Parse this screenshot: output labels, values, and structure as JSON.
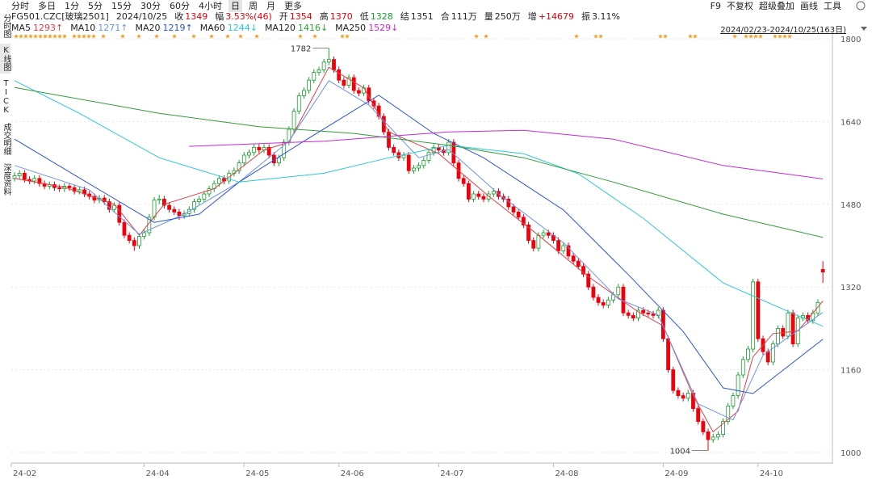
{
  "toolbar": {
    "tabs": [
      "分时",
      "多日",
      "1分",
      "5分",
      "15分",
      "30分",
      "60分",
      "4小时",
      "日",
      "周",
      "月",
      "更多"
    ],
    "active": "日",
    "tools": [
      "F9",
      "不复权",
      "超级叠加",
      "画线",
      "工具"
    ]
  },
  "sidebar": [
    "分时图",
    "K线图",
    "TICK",
    "成交明细",
    "深度资料"
  ],
  "quote": {
    "code": "FG501.CZC[玻璃2501]",
    "date": "2024/10/25",
    "fields": [
      {
        "label": "收",
        "value": "1349",
        "color": "#e8000b"
      },
      {
        "label": "幅",
        "value": "3.53%(46)",
        "color": "#e8000b"
      },
      {
        "label": "开",
        "value": "1354",
        "color": "#e8000b"
      },
      {
        "label": "高",
        "value": "1370",
        "color": "#e8000b"
      },
      {
        "label": "低",
        "value": "1328",
        "color": "#1a9e2d"
      },
      {
        "label": "结",
        "value": "1351",
        "color": "#222"
      },
      {
        "label": "合",
        "value": "111万",
        "color": "#222"
      },
      {
        "label": "量",
        "value": "250万",
        "color": "#222"
      },
      {
        "label": "增",
        "value": "+14679",
        "color": "#e8000b"
      },
      {
        "label": "振",
        "value": "3.11%",
        "color": "#222"
      }
    ]
  },
  "range": "2024/02/23-2024/10/25(163日)",
  "chart_data": {
    "type": "candlestick",
    "rise_color": "#1a9e2d",
    "fall_color": "#f0000a",
    "ylim": [
      1000,
      1800
    ],
    "yticks": [
      1000,
      1160,
      1320,
      1480,
      1640,
      1800
    ],
    "xticks": [
      {
        "value": 0,
        "label": "24-02"
      },
      {
        "value": 26,
        "label": "24-04"
      },
      {
        "value": 46,
        "label": "24-05"
      },
      {
        "value": 65,
        "label": "24-06"
      },
      {
        "value": 85,
        "label": "24-07"
      },
      {
        "value": 108,
        "label": "24-08"
      },
      {
        "value": 130,
        "label": "24-09"
      },
      {
        "value": 149,
        "label": "24-10"
      }
    ],
    "annotations": [
      {
        "text": "1782",
        "kind": "high"
      },
      {
        "text": "1004",
        "kind": "low"
      }
    ],
    "ohlc": [
      [
        1530,
        1542,
        1524,
        1535
      ],
      [
        1535,
        1546,
        1529,
        1540
      ],
      [
        1540,
        1546,
        1522,
        1528
      ],
      [
        1528,
        1534,
        1519,
        1525
      ],
      [
        1525,
        1536,
        1519,
        1530
      ],
      [
        1530,
        1536,
        1514,
        1520
      ],
      [
        1520,
        1526,
        1509,
        1515
      ],
      [
        1515,
        1524,
        1509,
        1518
      ],
      [
        1518,
        1524,
        1506,
        1512
      ],
      [
        1512,
        1518,
        1504,
        1510
      ],
      [
        1510,
        1521,
        1504,
        1515
      ],
      [
        1515,
        1521,
        1506,
        1512
      ],
      [
        1512,
        1518,
        1499,
        1505
      ],
      [
        1505,
        1514,
        1499,
        1508
      ],
      [
        1508,
        1514,
        1494,
        1500
      ],
      [
        1500,
        1506,
        1489,
        1495
      ],
      [
        1495,
        1501,
        1482,
        1488
      ],
      [
        1488,
        1498,
        1482,
        1492
      ],
      [
        1492,
        1498,
        1479,
        1485
      ],
      [
        1485,
        1491,
        1464,
        1470
      ],
      [
        1470,
        1484,
        1464,
        1478
      ],
      [
        1478,
        1484,
        1439,
        1445
      ],
      [
        1445,
        1451,
        1414,
        1420
      ],
      [
        1420,
        1426,
        1404,
        1410
      ],
      [
        1410,
        1416,
        1390,
        1400
      ],
      [
        1400,
        1424,
        1394,
        1418
      ],
      [
        1418,
        1431,
        1412,
        1425
      ],
      [
        1425,
        1461,
        1419,
        1455
      ],
      [
        1455,
        1494,
        1449,
        1488
      ],
      [
        1488,
        1498,
        1480,
        1490
      ],
      [
        1490,
        1496,
        1472,
        1478
      ],
      [
        1478,
        1484,
        1464,
        1470
      ],
      [
        1470,
        1476,
        1459,
        1465
      ],
      [
        1465,
        1471,
        1450,
        1458
      ],
      [
        1458,
        1468,
        1452,
        1462
      ],
      [
        1462,
        1476,
        1456,
        1470
      ],
      [
        1470,
        1491,
        1464,
        1485
      ],
      [
        1485,
        1496,
        1479,
        1490
      ],
      [
        1490,
        1506,
        1484,
        1500
      ],
      [
        1500,
        1516,
        1494,
        1510
      ],
      [
        1510,
        1526,
        1504,
        1520
      ],
      [
        1520,
        1536,
        1514,
        1530
      ],
      [
        1530,
        1536,
        1519,
        1525
      ],
      [
        1525,
        1546,
        1519,
        1540
      ],
      [
        1540,
        1551,
        1534,
        1545
      ],
      [
        1545,
        1566,
        1539,
        1560
      ],
      [
        1560,
        1581,
        1554,
        1575
      ],
      [
        1575,
        1586,
        1569,
        1580
      ],
      [
        1580,
        1596,
        1574,
        1590
      ],
      [
        1590,
        1596,
        1579,
        1585
      ],
      [
        1585,
        1596,
        1579,
        1590
      ],
      [
        1590,
        1596,
        1569,
        1575
      ],
      [
        1575,
        1581,
        1554,
        1560
      ],
      [
        1560,
        1576,
        1554,
        1570
      ],
      [
        1570,
        1606,
        1564,
        1600
      ],
      [
        1600,
        1631,
        1594,
        1625
      ],
      [
        1625,
        1666,
        1619,
        1660
      ],
      [
        1660,
        1696,
        1654,
        1690
      ],
      [
        1690,
        1706,
        1684,
        1700
      ],
      [
        1700,
        1726,
        1694,
        1720
      ],
      [
        1720,
        1741,
        1714,
        1735
      ],
      [
        1735,
        1746,
        1729,
        1740
      ],
      [
        1740,
        1761,
        1734,
        1755
      ],
      [
        1755,
        1782,
        1749,
        1760
      ],
      [
        1760,
        1766,
        1734,
        1740
      ],
      [
        1740,
        1746,
        1714,
        1720
      ],
      [
        1720,
        1726,
        1704,
        1710
      ],
      [
        1710,
        1731,
        1704,
        1725
      ],
      [
        1725,
        1731,
        1694,
        1700
      ],
      [
        1700,
        1706,
        1689,
        1695
      ],
      [
        1695,
        1711,
        1689,
        1705
      ],
      [
        1705,
        1711,
        1674,
        1680
      ],
      [
        1680,
        1686,
        1664,
        1670
      ],
      [
        1670,
        1676,
        1644,
        1650
      ],
      [
        1650,
        1656,
        1614,
        1620
      ],
      [
        1620,
        1626,
        1584,
        1590
      ],
      [
        1590,
        1596,
        1574,
        1580
      ],
      [
        1580,
        1586,
        1564,
        1570
      ],
      [
        1570,
        1581,
        1564,
        1575
      ],
      [
        1575,
        1581,
        1539,
        1545
      ],
      [
        1545,
        1556,
        1539,
        1550
      ],
      [
        1550,
        1561,
        1544,
        1555
      ],
      [
        1555,
        1571,
        1549,
        1565
      ],
      [
        1565,
        1586,
        1559,
        1580
      ],
      [
        1580,
        1596,
        1574,
        1590
      ],
      [
        1590,
        1596,
        1579,
        1585
      ],
      [
        1585,
        1591,
        1574,
        1580
      ],
      [
        1580,
        1606,
        1574,
        1600
      ],
      [
        1600,
        1606,
        1554,
        1560
      ],
      [
        1560,
        1566,
        1524,
        1530
      ],
      [
        1530,
        1536,
        1514,
        1520
      ],
      [
        1520,
        1526,
        1484,
        1490
      ],
      [
        1490,
        1506,
        1484,
        1500
      ],
      [
        1500,
        1506,
        1489,
        1495
      ],
      [
        1495,
        1501,
        1484,
        1490
      ],
      [
        1490,
        1506,
        1484,
        1500
      ],
      [
        1500,
        1511,
        1494,
        1505
      ],
      [
        1505,
        1511,
        1489,
        1495
      ],
      [
        1495,
        1501,
        1484,
        1490
      ],
      [
        1490,
        1496,
        1469,
        1475
      ],
      [
        1475,
        1481,
        1459,
        1465
      ],
      [
        1465,
        1471,
        1449,
        1455
      ],
      [
        1455,
        1461,
        1434,
        1440
      ],
      [
        1440,
        1446,
        1404,
        1410
      ],
      [
        1410,
        1416,
        1389,
        1395
      ],
      [
        1395,
        1426,
        1389,
        1420
      ],
      [
        1420,
        1431,
        1414,
        1425
      ],
      [
        1425,
        1431,
        1414,
        1420
      ],
      [
        1420,
        1426,
        1404,
        1410
      ],
      [
        1410,
        1416,
        1384,
        1390
      ],
      [
        1390,
        1406,
        1384,
        1400
      ],
      [
        1400,
        1406,
        1374,
        1380
      ],
      [
        1380,
        1386,
        1364,
        1370
      ],
      [
        1370,
        1376,
        1354,
        1360
      ],
      [
        1360,
        1366,
        1339,
        1345
      ],
      [
        1345,
        1351,
        1314,
        1320
      ],
      [
        1320,
        1326,
        1294,
        1300
      ],
      [
        1300,
        1306,
        1284,
        1290
      ],
      [
        1290,
        1296,
        1279,
        1285
      ],
      [
        1285,
        1301,
        1279,
        1295
      ],
      [
        1295,
        1311,
        1289,
        1305
      ],
      [
        1305,
        1326,
        1299,
        1320
      ],
      [
        1320,
        1326,
        1264,
        1270
      ],
      [
        1270,
        1276,
        1259,
        1265
      ],
      [
        1265,
        1271,
        1254,
        1260
      ],
      [
        1260,
        1281,
        1254,
        1275
      ],
      [
        1275,
        1281,
        1264,
        1270
      ],
      [
        1270,
        1276,
        1262,
        1268
      ],
      [
        1268,
        1274,
        1259,
        1265
      ],
      [
        1265,
        1281,
        1259,
        1275
      ],
      [
        1275,
        1281,
        1214,
        1220
      ],
      [
        1220,
        1226,
        1154,
        1160
      ],
      [
        1160,
        1166,
        1114,
        1120
      ],
      [
        1120,
        1126,
        1104,
        1110
      ],
      [
        1110,
        1116,
        1099,
        1105
      ],
      [
        1105,
        1121,
        1099,
        1115
      ],
      [
        1115,
        1121,
        1079,
        1085
      ],
      [
        1085,
        1091,
        1054,
        1060
      ],
      [
        1060,
        1066,
        1034,
        1040
      ],
      [
        1040,
        1046,
        1004,
        1025
      ],
      [
        1025,
        1036,
        1019,
        1030
      ],
      [
        1030,
        1041,
        1024,
        1035
      ],
      [
        1035,
        1066,
        1029,
        1060
      ],
      [
        1060,
        1096,
        1054,
        1090
      ],
      [
        1090,
        1116,
        1084,
        1110
      ],
      [
        1110,
        1156,
        1104,
        1150
      ],
      [
        1150,
        1186,
        1144,
        1180
      ],
      [
        1180,
        1206,
        1174,
        1200
      ],
      [
        1200,
        1336,
        1194,
        1330
      ],
      [
        1330,
        1336,
        1214,
        1220
      ],
      [
        1220,
        1226,
        1189,
        1195
      ],
      [
        1195,
        1201,
        1169,
        1175
      ],
      [
        1175,
        1216,
        1169,
        1210
      ],
      [
        1210,
        1246,
        1204,
        1240
      ],
      [
        1240,
        1246,
        1219,
        1225
      ],
      [
        1225,
        1276,
        1219,
        1270
      ],
      [
        1270,
        1276,
        1204,
        1210
      ],
      [
        1210,
        1266,
        1204,
        1260
      ],
      [
        1260,
        1271,
        1254,
        1265
      ],
      [
        1265,
        1271,
        1249,
        1255
      ],
      [
        1255,
        1276,
        1249,
        1270
      ],
      [
        1270,
        1296,
        1264,
        1290
      ],
      [
        1354,
        1370,
        1328,
        1349
      ]
    ],
    "series": [
      {
        "name": "MA5",
        "color": "#e0404a",
        "last": 1293,
        "last_label": "1293↑",
        "x": [
          0,
          10,
          20,
          25,
          30,
          40,
          50,
          55,
          63,
          70,
          75,
          85,
          95,
          105,
          115,
          125,
          130,
          136,
          140,
          145,
          148,
          152,
          157,
          162
        ],
        "values": [
          1530,
          1513,
          1480,
          1420,
          1480,
          1510,
          1585,
          1600,
          1745,
          1705,
          1620,
          1578,
          1496,
          1420,
          1340,
          1272,
          1245,
          1110,
          1040,
          1080,
          1185,
          1230,
          1235,
          1293
        ]
      },
      {
        "name": "MA10",
        "color": "#6b93ec",
        "last": 1271,
        "last_label": "1271↑",
        "x": [
          0,
          15,
          25,
          34,
          45,
          55,
          63,
          71,
          81,
          87,
          97,
          110,
          121,
          129,
          137,
          144,
          150,
          162
        ],
        "values": [
          1555,
          1508,
          1422,
          1461,
          1523,
          1602,
          1719,
          1672,
          1570,
          1586,
          1500,
          1406,
          1297,
          1266,
          1094,
          1063,
          1188,
          1271
        ]
      },
      {
        "name": "MA20",
        "color": "#2d55da",
        "last": 1219,
        "last_label": "1219↑",
        "x": [
          0,
          13,
          28,
          37,
          45,
          58,
          73,
          84,
          94,
          110,
          123,
          134,
          142,
          148,
          162
        ],
        "values": [
          1606,
          1531,
          1445,
          1461,
          1523,
          1602,
          1691,
          1617,
          1570,
          1469,
          1344,
          1234,
          1125,
          1114,
          1219
        ]
      },
      {
        "name": "MA60",
        "color": "#2cc9d9",
        "last": 1244,
        "last_label": "1244↓",
        "x": [
          0,
          13,
          29,
          45,
          62,
          75,
          87,
          102,
          113,
          126,
          142,
          155,
          162
        ],
        "values": [
          1719,
          1656,
          1570,
          1523,
          1540,
          1570,
          1594,
          1578,
          1539,
          1453,
          1328,
          1273,
          1244
        ]
      },
      {
        "name": "MA120",
        "color": "#2f9e36",
        "last": 1416,
        "last_label": "1416↓",
        "x": [
          0,
          29,
          49,
          68,
          87,
          102,
          120,
          142,
          162
        ],
        "values": [
          1706,
          1656,
          1630,
          1617,
          1594,
          1570,
          1523,
          1461,
          1416
        ]
      },
      {
        "name": "MA250",
        "color": "#c42bd4",
        "last": 1529,
        "last_label": "1529↓",
        "x": [
          35,
          62,
          87,
          102,
          120,
          142,
          162
        ],
        "values": [
          1592,
          1602,
          1620,
          1623,
          1606,
          1555,
          1529
        ]
      }
    ]
  }
}
